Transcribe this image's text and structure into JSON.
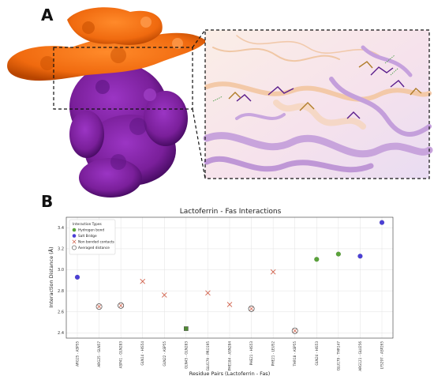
{
  "panels": {
    "a_label": "A",
    "b_label": "B"
  },
  "colors": {
    "lactoferrin": "#f06a0f",
    "lactoferrin_dark": "#b84500",
    "fas": "#7a1f9a",
    "fas_dark": "#4a0c66",
    "hbond": "#5aa33a",
    "salt": "#4b3fd6",
    "nonbond": "#cf5a43",
    "averaged": "#555555"
  },
  "chart_data": {
    "type": "scatter",
    "title": "Lactoferrin - Fas Interactions",
    "xlabel": "Residue Pairs (Lactoferrin - Fas)",
    "ylabel": "Interaction Distance (Å)",
    "ylim": [
      2.35,
      3.5
    ],
    "yticks": [
      "2.4",
      "2.6",
      "2.8",
      "3.0",
      "3.2",
      "3.4"
    ],
    "grid": true,
    "legend": {
      "title": "Interaction Types",
      "placement": "top-left",
      "items": [
        "Hydrogen bond",
        "Salt Bridge",
        "Non bonded contacts",
        "Averaged distance"
      ]
    },
    "categories": [
      "ARG25 - ASP55",
      "ARG25 - GLN57",
      "ASP41 - GLN283",
      "GLN14 - HIS54",
      "GLN22 - ASP55",
      "GLN45 - GLN283",
      "GLU179 - PRO195",
      "PHE184 - ASN284",
      "PHE21 - HIS53",
      "PHE21 - LEU52",
      "THR18 - ASP55",
      "GLN24 - HIS53",
      "GLU179 - THR147",
      "ARG121 - GLU256",
      "LYS297 - ASP265"
    ],
    "points": [
      {
        "x": "ARG25 - ASP55",
        "y": 2.93,
        "type": "salt"
      },
      {
        "x": "ARG25 - GLN57",
        "y": 2.65,
        "type": "averaged"
      },
      {
        "x": "ASP41 - GLN283",
        "y": 2.66,
        "type": "averaged"
      },
      {
        "x": "GLN14 - HIS54",
        "y": 2.89,
        "type": "nonbond"
      },
      {
        "x": "GLN22 - ASP55",
        "y": 2.76,
        "type": "nonbond"
      },
      {
        "x": "GLN45 - GLN283",
        "y": 2.44,
        "type": "hbond_square"
      },
      {
        "x": "GLU179 - PRO195",
        "y": 2.78,
        "type": "nonbond"
      },
      {
        "x": "PHE184 - ASN284",
        "y": 2.67,
        "type": "nonbond"
      },
      {
        "x": "PHE21 - HIS53",
        "y": 2.63,
        "type": "averaged"
      },
      {
        "x": "PHE21 - LEU52",
        "y": 2.98,
        "type": "nonbond"
      },
      {
        "x": "THR18 - ASP55",
        "y": 2.42,
        "type": "averaged"
      },
      {
        "x": "GLN24 - HIS53",
        "y": 3.1,
        "type": "hbond"
      },
      {
        "x": "GLU179 - THR147",
        "y": 3.15,
        "type": "hbond"
      },
      {
        "x": "ARG121 - GLU256",
        "y": 3.13,
        "type": "salt"
      },
      {
        "x": "LYS297 - ASP265",
        "y": 3.45,
        "type": "salt"
      }
    ]
  }
}
